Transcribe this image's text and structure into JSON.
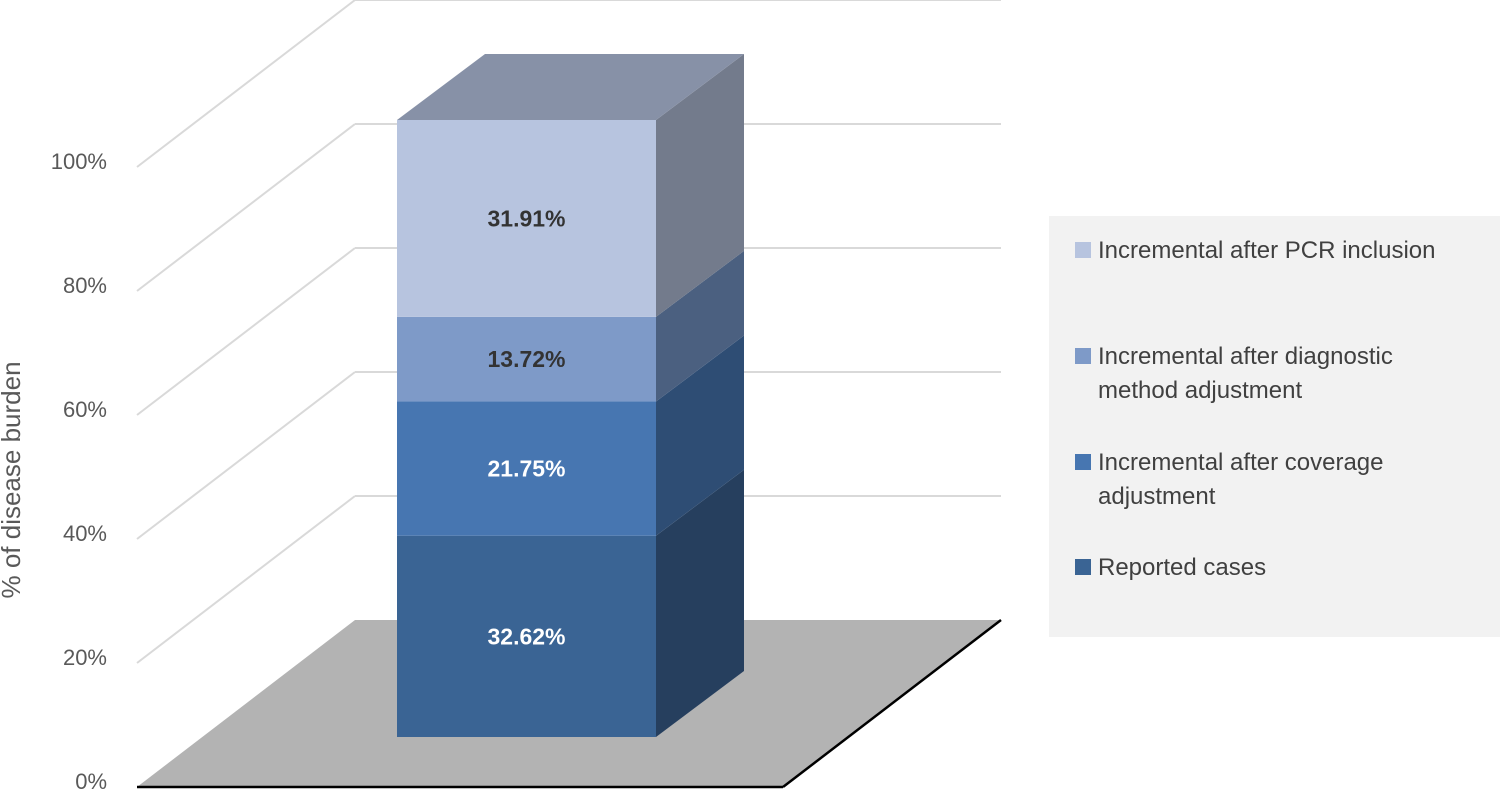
{
  "chart_data": {
    "type": "bar",
    "subtype": "3d-stacked-column-100pct",
    "ylabel": "% of disease burden",
    "ylim": [
      0,
      100
    ],
    "ytick_labels": [
      "0%",
      "20%",
      "40%",
      "60%",
      "80%",
      "100%"
    ],
    "grid": true,
    "legend_position": "right",
    "series": [
      {
        "name": "Reported cases",
        "value": 32.62,
        "label": "32.62%",
        "color": "#3a6494",
        "side_color": "#263f5e",
        "label_color": "#ffffff"
      },
      {
        "name": "Incremental after coverage adjustment",
        "value": 21.75,
        "label": "21.75%",
        "color": "#4776b1",
        "side_color": "#2e4d74",
        "label_color": "#ffffff"
      },
      {
        "name": "Incremental after diagnostic method adjustment",
        "value": 13.72,
        "label": "13.72%",
        "color": "#7e9ac8",
        "side_color": "#4b6080",
        "label_color": "#333333"
      },
      {
        "name": "Incremental after PCR inclusion",
        "value": 31.91,
        "label": "31.91%",
        "color": "#b7c4df",
        "side_color": "#737b8c",
        "label_color": "#333333"
      }
    ],
    "legend_lines": [
      [
        "Incremental after PCR inclusion"
      ],
      [
        "Incremental after diagnostic",
        "method adjustment"
      ],
      [
        "Incremental after coverage",
        "adjustment"
      ],
      [
        "Reported cases"
      ]
    ]
  }
}
